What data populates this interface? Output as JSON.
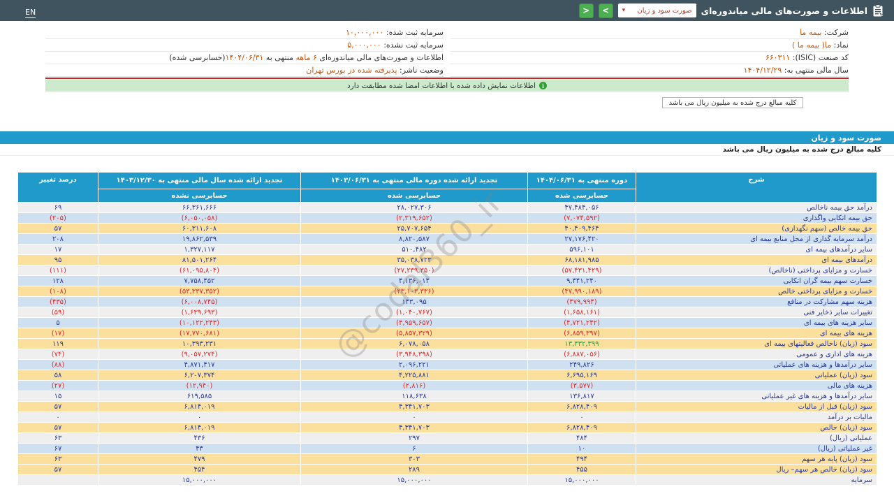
{
  "topbar": {
    "lang": "EN",
    "title": "اطلاعات و صورت‌های مالی میاندوره‌ای",
    "dropdown_value": "صورت سود و زیان",
    "dropdown_caret": "▾",
    "nav_forward": "<",
    "nav_back": ">",
    "clipboard_icon": "clipboard-icon"
  },
  "company_info": {
    "right_rows": [
      [
        {
          "t": "شرکت: "
        },
        {
          "t": "بیمه ما",
          "a": true
        }
      ],
      [
        {
          "t": "نماد: "
        },
        {
          "t": "ما( بیمه ما )",
          "a": true
        }
      ],
      [
        {
          "t": "کد صنعت (ISIC): "
        },
        {
          "t": "۶۶۰۳۱۱",
          "a": true
        }
      ],
      [
        {
          "t": "سال مالی منتهی به: "
        },
        {
          "t": "۱۴۰۴/۱۲/۲۹",
          "a": true
        }
      ]
    ],
    "left_rows": [
      [
        {
          "t": "سرمایه ثبت شده: "
        },
        {
          "t": "۱۰,۰۰۰,۰۰۰",
          "a": true
        }
      ],
      [
        {
          "t": "سرمایه ثبت نشده: "
        },
        {
          "t": "۵,۰۰۰,۰۰۰",
          "a": true
        }
      ],
      [
        {
          "t": "اطلاعات و صورت‌های مالی میاندوره‌ای "
        },
        {
          "t": "۶ ماهه",
          "a": true
        },
        {
          "t": " منتهی به "
        },
        {
          "t": "۱۴۰۴/۰۶/۳۱",
          "a": true
        },
        {
          "t": "(حسابرسی شده)"
        }
      ],
      [
        {
          "t": "وضعیت ناشر: "
        },
        {
          "t": "پذیرفته شده در بورس تهران",
          "a": true
        }
      ]
    ]
  },
  "banner": {
    "icon": "info-icon",
    "icon_glyph": "i",
    "text": "اطلاعات نمایش داده شده با اطلاعات امضا شده مطابقت دارد"
  },
  "units_note": "کلیه مبالغ درج شده به میلیون ریال می باشد",
  "section": {
    "title": "صورت سود و زیان",
    "units_note": "کلیه مبالغ درج شده به میلیون ریال می باشد"
  },
  "table": {
    "columns": [
      {
        "title": "شرح",
        "sub": ""
      },
      {
        "title": "دوره منتهی به ۱۴۰۴/۰۶/۳۱",
        "sub": "حسابرسی شده"
      },
      {
        "title": "تجدید ارائه شده دوره مالی منتهی به ۱۴۰۳/۰۶/۳۱",
        "sub": "حسابرسی شده"
      },
      {
        "title": "تجدید ارائه شده سال مالی منتهی به ۱۴۰۳/۱۲/۳۰",
        "sub": "حسابرسی نشده"
      },
      {
        "title": "درصد تغییر",
        "sub": ""
      }
    ],
    "rows": [
      {
        "label": "درآمد حق بیمه ناخالص",
        "c1": "۴۷,۴۸۴,۰۵۶",
        "c2": "۲۸,۰۲۷,۳۰۶",
        "c3": "۶۶,۳۶۱,۶۶۶",
        "pct": "۶۹",
        "bg": "gray"
      },
      {
        "label": "حق بیمه اتکایی واگذاری",
        "c1": "(۷,۰۷۴,۵۹۲)",
        "c2": "(۲,۳۱۹,۶۵۲)",
        "c3": "(۶,۰۵۰,۰۵۸)",
        "pct": "(۲۰۵)",
        "bg": "blue"
      },
      {
        "label": "حق بیمه خالص (سهم نگهداری)",
        "c1": "۴۰,۴۰۹,۴۶۴",
        "c2": "۲۵,۷۰۷,۶۵۴",
        "c3": "۶۰,۳۱۱,۶۰۸",
        "pct": "۵۷",
        "bg": "yellow"
      },
      {
        "label": "درآمد سرمایه گذاری از محل منابع بیمه ای",
        "c1": "۲۷,۱۷۶,۴۲۰",
        "c2": "۸,۸۲۰,۵۸۷",
        "c3": "۱۹,۸۶۲,۵۳۹",
        "pct": "۲۰۸",
        "bg": "blue"
      },
      {
        "label": "سایر درآمدهای بیمه ای",
        "c1": "۵۹۶,۱۰۱",
        "c2": "۵۱۰,۴۸۲",
        "c3": "۱,۳۲۷,۱۱۷",
        "pct": "۱۷",
        "bg": "gray"
      },
      {
        "label": "درآمدهای بیمه ای",
        "c1": "۶۸,۱۸۱,۹۸۵",
        "c2": "۳۵,۰۳۸,۷۲۳",
        "c3": "۸۱,۵۰۱,۲۶۴",
        "pct": "۹۵",
        "bg": "yellow"
      },
      {
        "label": "خسارت و مزایای پرداختی (ناخالص)",
        "c1": "(۵۷,۴۳۱,۴۲۹)",
        "c2": "(۲۷,۲۳۹,۳۵۰)",
        "c3": "(۶۱,۰۹۵,۸۰۴)",
        "pct": "(۱۱۱)",
        "bg": "gray"
      },
      {
        "label": "خسارت سهم بیمه گران اتکایی",
        "c1": "۹,۴۴۱,۲۴۰",
        "c2": "۴,۱۳۶,۰۱۴",
        "c3": "۷,۷۵۸,۴۵۲",
        "pct": "۱۲۸",
        "bg": "blue"
      },
      {
        "label": "خسارت و مزایای پرداختی خالص",
        "c1": "(۴۷,۹۹۰,۱۸۹)",
        "c2": "(۲۳,۱۰۳,۳۳۶)",
        "c3": "(۵۳,۳۳۷,۳۵۲)",
        "pct": "(۱۰۸)",
        "bg": "yellow"
      },
      {
        "label": "هزینه سهم مشارکت در منافع",
        "c1": "(۴۷۹,۹۹۴)",
        "c2": "۱۴۳,۰۹۵",
        "c3": "(۶,۰۰۸,۷۴۵)",
        "pct": "(۴۳۵)",
        "bg": "blue"
      },
      {
        "label": "تغییرات سایر ذخایر فنی",
        "c1": "(۱,۶۵۸,۱۶۱)",
        "c2": "(۱,۰۴۰,۷۶۷)",
        "c3": "(۱,۶۳۹,۶۹۳)",
        "pct": "(۵۹)",
        "bg": "gray"
      },
      {
        "label": "سایر هزینه های بیمه ای",
        "c1": "(۴,۷۲۱,۲۴۲)",
        "c2": "(۴,۹۵۹,۶۵۷)",
        "c3": "(۱۰,۱۲۲,۲۴۳)",
        "pct": "۵",
        "bg": "blue"
      },
      {
        "label": "هزینه های بیمه ای",
        "c1": "(۶,۸۵۹,۳۹۷)",
        "c2": "(۵,۸۵۷,۳۲۹)",
        "c3": "(۱۷,۷۷۰,۶۸۱)",
        "pct": "(۱۷)",
        "bg": "yellow"
      },
      {
        "label": "سود (زیان) ناخالص فعالیتهای بیمه ای",
        "c1": "۱۳,۳۳۲,۳۹۹",
        "c2": "۶,۰۷۸,۰۵۸",
        "c3": "۱۰,۳۹۳,۲۳۱",
        "pct": "۱۱۹",
        "bg": "yellow",
        "green": [
          "c1"
        ]
      },
      {
        "label": "هزینه های اداری و عمومی",
        "c1": "(۶,۸۸۷,۰۵۶)",
        "c2": "(۳,۹۴۸,۳۹۸)",
        "c3": "(۹,۰۵۷,۲۷۴)",
        "pct": "(۷۴)",
        "bg": "gray"
      },
      {
        "label": "سایر درآمدها و هزینه های عملیاتی",
        "c1": "۲۴۹,۸۲۶",
        "c2": "۲,۰۹۶,۲۲۱",
        "c3": "۴,۸۷۱,۴۱۷",
        "pct": "(۸۸)",
        "bg": "blue"
      },
      {
        "label": "سود (زیان) عملیاتی",
        "c1": "۶,۶۹۵,۱۶۹",
        "c2": "۴,۲۲۵,۸۸۱",
        "c3": "۶,۲۰۷,۳۷۴",
        "pct": "۵۸",
        "bg": "yellow"
      },
      {
        "label": "هزینه های مالی",
        "c1": "(۳,۵۷۷)",
        "c2": "(۲,۸۱۶)",
        "c3": "(۱۲,۹۴۰)",
        "pct": "(۲۷)",
        "bg": "blue"
      },
      {
        "label": "سایر درآمدها و هزینه های غیر عملیاتی",
        "c1": "۱۳۶,۸۱۷",
        "c2": "۱۱۸,۶۳۸",
        "c3": "۶۱۹,۵۸۵",
        "pct": "۱۵",
        "bg": "gray"
      },
      {
        "label": "سود (زیان) قبل از مالیات",
        "c1": "۶,۸۲۸,۴۰۹",
        "c2": "۴,۳۴۱,۷۰۳",
        "c3": "۶,۸۱۴,۰۱۹",
        "pct": "۵۷",
        "bg": "yellow"
      },
      {
        "label": "مالیات بر درآمد",
        "c1": "۰",
        "c2": "۰",
        "c3": "۰",
        "pct": "۰",
        "bg": "gray"
      },
      {
        "label": "سود (زیان) خالص",
        "c1": "۶,۸۲۸,۴۰۹",
        "c2": "۴,۳۴۱,۷۰۳",
        "c3": "۶,۸۱۴,۰۱۹",
        "pct": "۵۷",
        "bg": "yellow"
      },
      {
        "label": "عملیاتی (ریال)",
        "c1": "۴۸۴",
        "c2": "۲۹۷",
        "c3": "۴۳۶",
        "pct": "۶۳",
        "bg": "gray"
      },
      {
        "label": "غیر عملیاتی (ریال)",
        "c1": "۱۰",
        "c2": "۶",
        "c3": "۴۳",
        "pct": "۶۷",
        "bg": "blue"
      },
      {
        "label": "سود (زیان) پایه هر سهم",
        "c1": "۴۹۴",
        "c2": "۳۰۳",
        "c3": "۴۷۹",
        "pct": "۶۳",
        "bg": "yellow"
      },
      {
        "label": "سود (زیان) خالص هر سهم– ریال",
        "c1": "۴۵۵",
        "c2": "۲۸۹",
        "c3": "۴۵۴",
        "pct": "۵۷",
        "bg": "yellow"
      },
      {
        "label": "سرمایه",
        "c1": "۱۵,۰۰۰,۰۰۰",
        "c2": "۱۵,۰۰۰,۰۰۰",
        "c3": "۱۵,۰۰۰,۰۰۰",
        "pct": "",
        "bg": "gray"
      }
    ]
  },
  "watermark": {
    "text": "@codal360_ir"
  },
  "colors": {
    "topbar_bg": "#3f545e",
    "green_accent": "#4caf50",
    "blue_accent": "#1f9aca",
    "orange_value": "#d35400",
    "dropdown_text": "#c0392b",
    "red_negative": "#e02b2b",
    "navy_positive": "#283a97",
    "green_positive": "#21a14a",
    "row_yellow": "#fbdf9d",
    "row_blue": "#cfe0f1",
    "row_gray": "#efefef",
    "banner_green_bg": "#cdeacd",
    "red_line": "#c62828"
  }
}
